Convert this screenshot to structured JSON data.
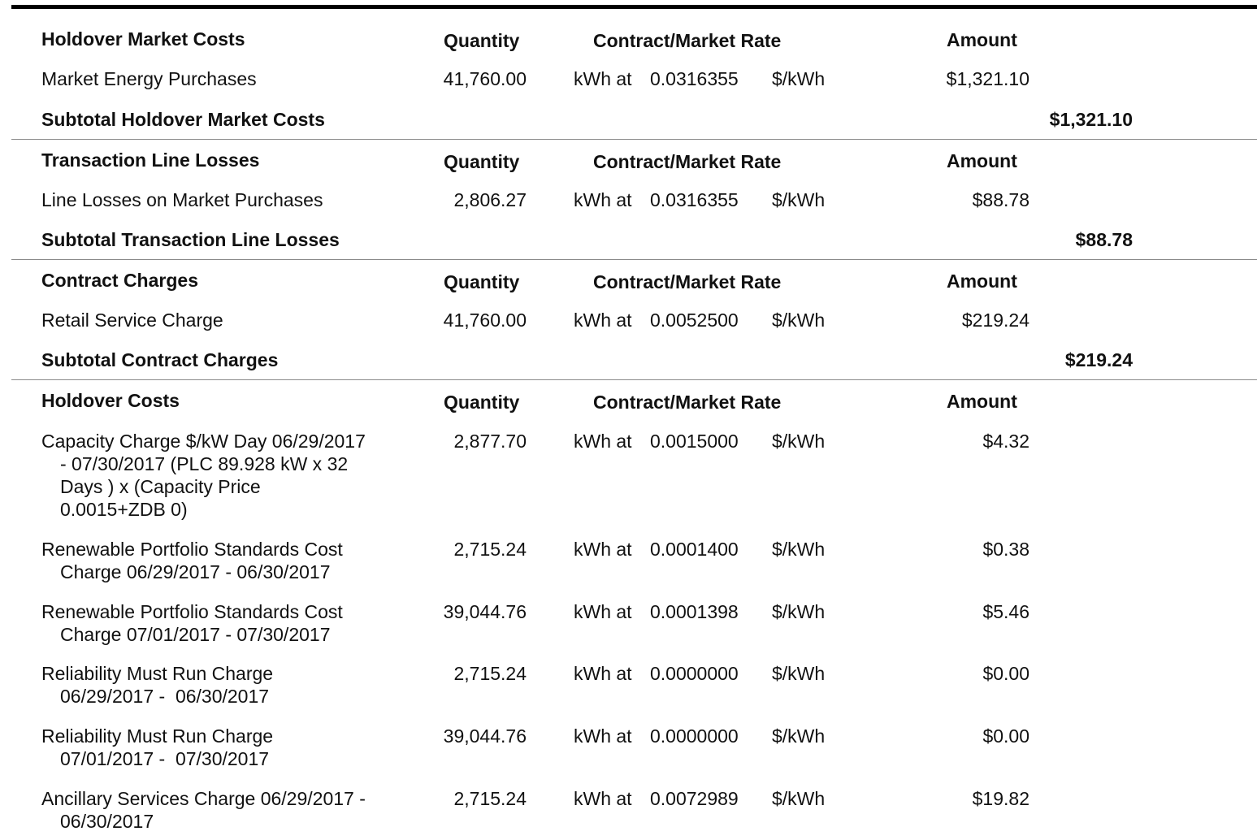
{
  "sections": [
    {
      "title": "Holdover Market Costs",
      "headers": {
        "quantity": "Quantity",
        "rate": "Contract/Market Rate",
        "amount": "Amount"
      },
      "rows": [
        {
          "description": [
            "Market Energy Purchases"
          ],
          "quantity": "41,760.00",
          "unit": "kWh at",
          "rate": "0.0316355",
          "per": "$/kWh",
          "amount": "$1,321.10"
        }
      ],
      "subtotal_label": "Subtotal Holdover Market Costs",
      "subtotal_value": "$1,321.10"
    },
    {
      "title": "Transaction Line Losses",
      "headers": {
        "quantity": "Quantity",
        "rate": "Contract/Market Rate",
        "amount": "Amount"
      },
      "rows": [
        {
          "description": [
            "Line Losses on Market Purchases"
          ],
          "quantity": "2,806.27",
          "unit": "kWh at",
          "rate": "0.0316355",
          "per": "$/kWh",
          "amount": "$88.78"
        }
      ],
      "subtotal_label": "Subtotal Transaction Line Losses",
      "subtotal_value": "$88.78"
    },
    {
      "title": "Contract Charges",
      "headers": {
        "quantity": "Quantity",
        "rate": "Contract/Market Rate",
        "amount": "Amount"
      },
      "rows": [
        {
          "description": [
            "Retail Service Charge"
          ],
          "quantity": "41,760.00",
          "unit": "kWh at",
          "rate": "0.0052500",
          "per": "$/kWh",
          "amount": "$219.24"
        }
      ],
      "subtotal_label": "Subtotal Contract Charges",
      "subtotal_value": "$219.24"
    },
    {
      "title": "Holdover Costs",
      "headers": {
        "quantity": "Quantity",
        "rate": "Contract/Market Rate",
        "amount": "Amount"
      },
      "rows": [
        {
          "description": [
            "Capacity Charge $/kW Day 06/29/2017",
            "- 07/30/2017 (PLC 89.928 kW x 32",
            "Days ) x (Capacity Price",
            "0.0015+ZDB 0)"
          ],
          "quantity": "2,877.70",
          "unit": "kWh at",
          "rate": "0.0015000",
          "per": "$/kWh",
          "amount": "$4.32"
        },
        {
          "description": [
            "Renewable Portfolio Standards Cost",
            "Charge 06/29/2017 - 06/30/2017"
          ],
          "quantity": "2,715.24",
          "unit": "kWh at",
          "rate": "0.0001400",
          "per": "$/kWh",
          "amount": "$0.38"
        },
        {
          "description": [
            "Renewable Portfolio Standards Cost",
            "Charge 07/01/2017 - 07/30/2017"
          ],
          "quantity": "39,044.76",
          "unit": "kWh at",
          "rate": "0.0001398",
          "per": "$/kWh",
          "amount": "$5.46"
        },
        {
          "description": [
            "Reliability Must Run Charge",
            "06/29/2017 -  06/30/2017"
          ],
          "quantity": "2,715.24",
          "unit": "kWh at",
          "rate": "0.0000000",
          "per": "$/kWh",
          "amount": "$0.00"
        },
        {
          "description": [
            "Reliability Must Run Charge",
            "07/01/2017 -  07/30/2017"
          ],
          "quantity": "39,044.76",
          "unit": "kWh at",
          "rate": "0.0000000",
          "per": "$/kWh",
          "amount": "$0.00"
        },
        {
          "description": [
            "Ancillary Services Charge 06/29/2017 -",
            "06/30/2017"
          ],
          "quantity": "2,715.24",
          "unit": "kWh at",
          "rate": "0.0072989",
          "per": "$/kWh",
          "amount": "$19.82"
        }
      ]
    }
  ]
}
